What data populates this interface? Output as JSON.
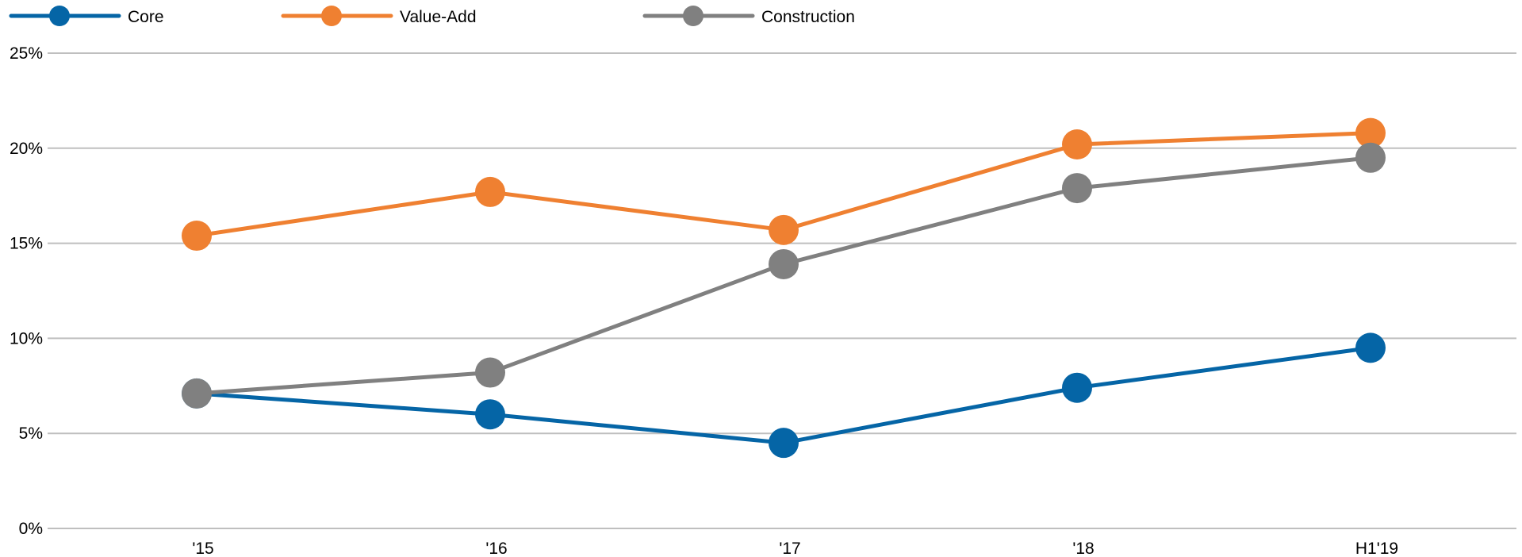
{
  "chart_data": {
    "type": "line",
    "categories": [
      "'15",
      "'16",
      "'17",
      "'18",
      "H1'19"
    ],
    "ylim": [
      0,
      25
    ],
    "yticks": [
      "0%",
      "5%",
      "10%",
      "15%",
      "20%",
      "25%"
    ],
    "grid": true,
    "legend_position": "top-left",
    "series": [
      {
        "name": "Core",
        "color": "#0565A6",
        "values": [
          7.1,
          6.0,
          4.5,
          7.4,
          9.5
        ]
      },
      {
        "name": "Value-Add",
        "color": "#EF8031",
        "values": [
          15.4,
          17.7,
          15.7,
          20.2,
          20.8
        ]
      },
      {
        "name": "Construction",
        "color": "#808080",
        "values": [
          7.1,
          8.2,
          13.9,
          17.9,
          19.5
        ]
      }
    ]
  }
}
